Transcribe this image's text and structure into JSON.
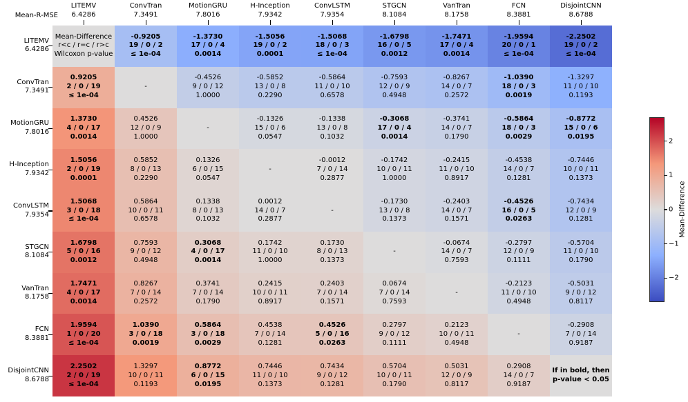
{
  "corner_label": "Mean-R-MSE",
  "legend_cell": {
    "line1": "Mean-Difference",
    "line2": "r<c / r=c / r>c",
    "line3": "Wilcoxon p-value"
  },
  "note_cell": {
    "line1": "If in bold, then",
    "line2": "p-value < 0.05"
  },
  "colors": {
    "background": "#ffffff",
    "neutral_cell": "#dddcdc",
    "cmap_low": "#3b4cc0",
    "cmap_mid": "#dddcdc",
    "cmap_high": "#b40426",
    "tick": "#000000"
  },
  "colorbar": {
    "label": "Mean-Difference",
    "ticks": [
      2,
      1,
      0,
      -1,
      -2
    ],
    "vmin": -2.7,
    "vmax": 2.7,
    "cmap_anchors": [
      [
        59,
        76,
        192
      ],
      [
        141,
        176,
        254
      ],
      [
        221,
        220,
        220
      ],
      [
        244,
        152,
        122
      ],
      [
        180,
        4,
        38
      ]
    ]
  },
  "chart_data": {
    "type": "heatmap",
    "legend_position": "right",
    "models": [
      {
        "name": "LITEMV",
        "score": "6.4286"
      },
      {
        "name": "ConvTran",
        "score": "7.3491"
      },
      {
        "name": "MotionGRU",
        "score": "7.8016"
      },
      {
        "name": "H-Inception",
        "score": "7.9342"
      },
      {
        "name": "ConvLSTM",
        "score": "7.9354"
      },
      {
        "name": "STGCN",
        "score": "8.1084"
      },
      {
        "name": "VanTran",
        "score": "8.1758"
      },
      {
        "name": "FCN",
        "score": "8.3881"
      },
      {
        "name": "DisjointCNN",
        "score": "8.6788"
      }
    ],
    "cells": [
      [
        {
          "special": "legend"
        },
        {
          "d": "-0.9205",
          "w": "19 / 0 / 2",
          "p": "≤ 1e-04",
          "b": true
        },
        {
          "d": "-1.3730",
          "w": "17 / 0 / 4",
          "p": "0.0014",
          "b": true
        },
        {
          "d": "-1.5056",
          "w": "19 / 0 / 2",
          "p": "0.0001",
          "b": true
        },
        {
          "d": "-1.5068",
          "w": "18 / 0 / 3",
          "p": "≤ 1e-04",
          "b": true
        },
        {
          "d": "-1.6798",
          "w": "16 / 0 / 5",
          "p": "0.0012",
          "b": true
        },
        {
          "d": "-1.7471",
          "w": "17 / 0 / 4",
          "p": "0.0014",
          "b": true
        },
        {
          "d": "-1.9594",
          "w": "20 / 0 / 1",
          "p": "≤ 1e-04",
          "b": true
        },
        {
          "d": "-2.2502",
          "w": "19 / 0 / 2",
          "p": "≤ 1e-04",
          "b": true
        }
      ],
      [
        {
          "d": "0.9205",
          "w": "2 / 0 / 19",
          "p": "≤ 1e-04",
          "b": true
        },
        {
          "special": "dash"
        },
        {
          "d": "-0.4526",
          "w": "9 / 0 / 12",
          "p": "1.0000",
          "b": false
        },
        {
          "d": "-0.5852",
          "w": "13 / 0 / 8",
          "p": "0.2290",
          "b": false
        },
        {
          "d": "-0.5864",
          "w": "11 / 0 / 10",
          "p": "0.6578",
          "b": false
        },
        {
          "d": "-0.7593",
          "w": "12 / 0 / 9",
          "p": "0.4948",
          "b": false
        },
        {
          "d": "-0.8267",
          "w": "14 / 0 / 7",
          "p": "0.2572",
          "b": false
        },
        {
          "d": "-1.0390",
          "w": "18 / 0 / 3",
          "p": "0.0019",
          "b": true
        },
        {
          "d": "-1.3297",
          "w": "11 / 0 / 10",
          "p": "0.1193",
          "b": false
        }
      ],
      [
        {
          "d": "1.3730",
          "w": "4 / 0 / 17",
          "p": "0.0014",
          "b": true
        },
        {
          "d": "0.4526",
          "w": "12 / 0 / 9",
          "p": "1.0000",
          "b": false
        },
        {
          "special": "dash"
        },
        {
          "d": "-0.1326",
          "w": "15 / 0 / 6",
          "p": "0.0547",
          "b": false
        },
        {
          "d": "-0.1338",
          "w": "13 / 0 / 8",
          "p": "0.1032",
          "b": false
        },
        {
          "d": "-0.3068",
          "w": "17 / 0 / 4",
          "p": "0.0014",
          "b": true
        },
        {
          "d": "-0.3741",
          "w": "14 / 0 / 7",
          "p": "0.1790",
          "b": false
        },
        {
          "d": "-0.5864",
          "w": "18 / 0 / 3",
          "p": "0.0029",
          "b": true
        },
        {
          "d": "-0.8772",
          "w": "15 / 0 / 6",
          "p": "0.0195",
          "b": true
        }
      ],
      [
        {
          "d": "1.5056",
          "w": "2 / 0 / 19",
          "p": "0.0001",
          "b": true
        },
        {
          "d": "0.5852",
          "w": "8 / 0 / 13",
          "p": "0.2290",
          "b": false
        },
        {
          "d": "0.1326",
          "w": "6 / 0 / 15",
          "p": "0.0547",
          "b": false
        },
        {
          "special": "dash"
        },
        {
          "d": "-0.0012",
          "w": "7 / 0 / 14",
          "p": "0.2877",
          "b": false
        },
        {
          "d": "-0.1742",
          "w": "10 / 0 / 11",
          "p": "1.0000",
          "b": false
        },
        {
          "d": "-0.2415",
          "w": "11 / 0 / 10",
          "p": "0.8917",
          "b": false
        },
        {
          "d": "-0.4538",
          "w": "14 / 0 / 7",
          "p": "0.1281",
          "b": false
        },
        {
          "d": "-0.7446",
          "w": "10 / 0 / 11",
          "p": "0.1373",
          "b": false
        }
      ],
      [
        {
          "d": "1.5068",
          "w": "3 / 0 / 18",
          "p": "≤ 1e-04",
          "b": true
        },
        {
          "d": "0.5864",
          "w": "10 / 0 / 11",
          "p": "0.6578",
          "b": false
        },
        {
          "d": "0.1338",
          "w": "8 / 0 / 13",
          "p": "0.1032",
          "b": false
        },
        {
          "d": "0.0012",
          "w": "14 / 0 / 7",
          "p": "0.2877",
          "b": false
        },
        {
          "special": "dash"
        },
        {
          "d": "-0.1730",
          "w": "13 / 0 / 8",
          "p": "0.1373",
          "b": false
        },
        {
          "d": "-0.2403",
          "w": "14 / 0 / 7",
          "p": "0.1571",
          "b": false
        },
        {
          "d": "-0.4526",
          "w": "16 / 0 / 5",
          "p": "0.0263",
          "b": true
        },
        {
          "d": "-0.7434",
          "w": "12 / 0 / 9",
          "p": "0.1281",
          "b": false
        }
      ],
      [
        {
          "d": "1.6798",
          "w": "5 / 0 / 16",
          "p": "0.0012",
          "b": true
        },
        {
          "d": "0.7593",
          "w": "9 / 0 / 12",
          "p": "0.4948",
          "b": false
        },
        {
          "d": "0.3068",
          "w": "4 / 0 / 17",
          "p": "0.0014",
          "b": true
        },
        {
          "d": "0.1742",
          "w": "11 / 0 / 10",
          "p": "1.0000",
          "b": false
        },
        {
          "d": "0.1730",
          "w": "8 / 0 / 13",
          "p": "0.1373",
          "b": false
        },
        {
          "special": "dash"
        },
        {
          "d": "-0.0674",
          "w": "14 / 0 / 7",
          "p": "0.7593",
          "b": false
        },
        {
          "d": "-0.2797",
          "w": "12 / 0 / 9",
          "p": "0.1111",
          "b": false
        },
        {
          "d": "-0.5704",
          "w": "11 / 0 / 10",
          "p": "0.1790",
          "b": false
        }
      ],
      [
        {
          "d": "1.7471",
          "w": "4 / 0 / 17",
          "p": "0.0014",
          "b": true
        },
        {
          "d": "0.8267",
          "w": "7 / 0 / 14",
          "p": "0.2572",
          "b": false
        },
        {
          "d": "0.3741",
          "w": "7 / 0 / 14",
          "p": "0.1790",
          "b": false
        },
        {
          "d": "0.2415",
          "w": "10 / 0 / 11",
          "p": "0.8917",
          "b": false
        },
        {
          "d": "0.2403",
          "w": "7 / 0 / 14",
          "p": "0.1571",
          "b": false
        },
        {
          "d": "0.0674",
          "w": "7 / 0 / 14",
          "p": "0.7593",
          "b": false
        },
        {
          "special": "dash"
        },
        {
          "d": "-0.2123",
          "w": "11 / 0 / 10",
          "p": "0.4948",
          "b": false
        },
        {
          "d": "-0.5031",
          "w": "9 / 0 / 12",
          "p": "0.8117",
          "b": false
        }
      ],
      [
        {
          "d": "1.9594",
          "w": "1 / 0 / 20",
          "p": "≤ 1e-04",
          "b": true
        },
        {
          "d": "1.0390",
          "w": "3 / 0 / 18",
          "p": "0.0019",
          "b": true
        },
        {
          "d": "0.5864",
          "w": "3 / 0 / 18",
          "p": "0.0029",
          "b": true
        },
        {
          "d": "0.4538",
          "w": "7 / 0 / 14",
          "p": "0.1281",
          "b": false
        },
        {
          "d": "0.4526",
          "w": "5 / 0 / 16",
          "p": "0.0263",
          "b": true
        },
        {
          "d": "0.2797",
          "w": "9 / 0 / 12",
          "p": "0.1111",
          "b": false
        },
        {
          "d": "0.2123",
          "w": "10 / 0 / 11",
          "p": "0.4948",
          "b": false
        },
        {
          "special": "dash"
        },
        {
          "d": "-0.2908",
          "w": "7 / 0 / 14",
          "p": "0.9187",
          "b": false
        }
      ],
      [
        {
          "d": "2.2502",
          "w": "2 / 0 / 19",
          "p": "≤ 1e-04",
          "b": true
        },
        {
          "d": "1.3297",
          "w": "10 / 0 / 11",
          "p": "0.1193",
          "b": false
        },
        {
          "d": "0.8772",
          "w": "6 / 0 / 15",
          "p": "0.0195",
          "b": true
        },
        {
          "d": "0.7446",
          "w": "11 / 0 / 10",
          "p": "0.1373",
          "b": false
        },
        {
          "d": "0.7434",
          "w": "9 / 0 / 12",
          "p": "0.1281",
          "b": false
        },
        {
          "d": "0.5704",
          "w": "10 / 0 / 11",
          "p": "0.1790",
          "b": false
        },
        {
          "d": "0.5031",
          "w": "12 / 0 / 9",
          "p": "0.8117",
          "b": false
        },
        {
          "d": "0.2908",
          "w": "14 / 0 / 7",
          "p": "0.9187",
          "b": false
        },
        {
          "special": "note"
        }
      ]
    ]
  }
}
